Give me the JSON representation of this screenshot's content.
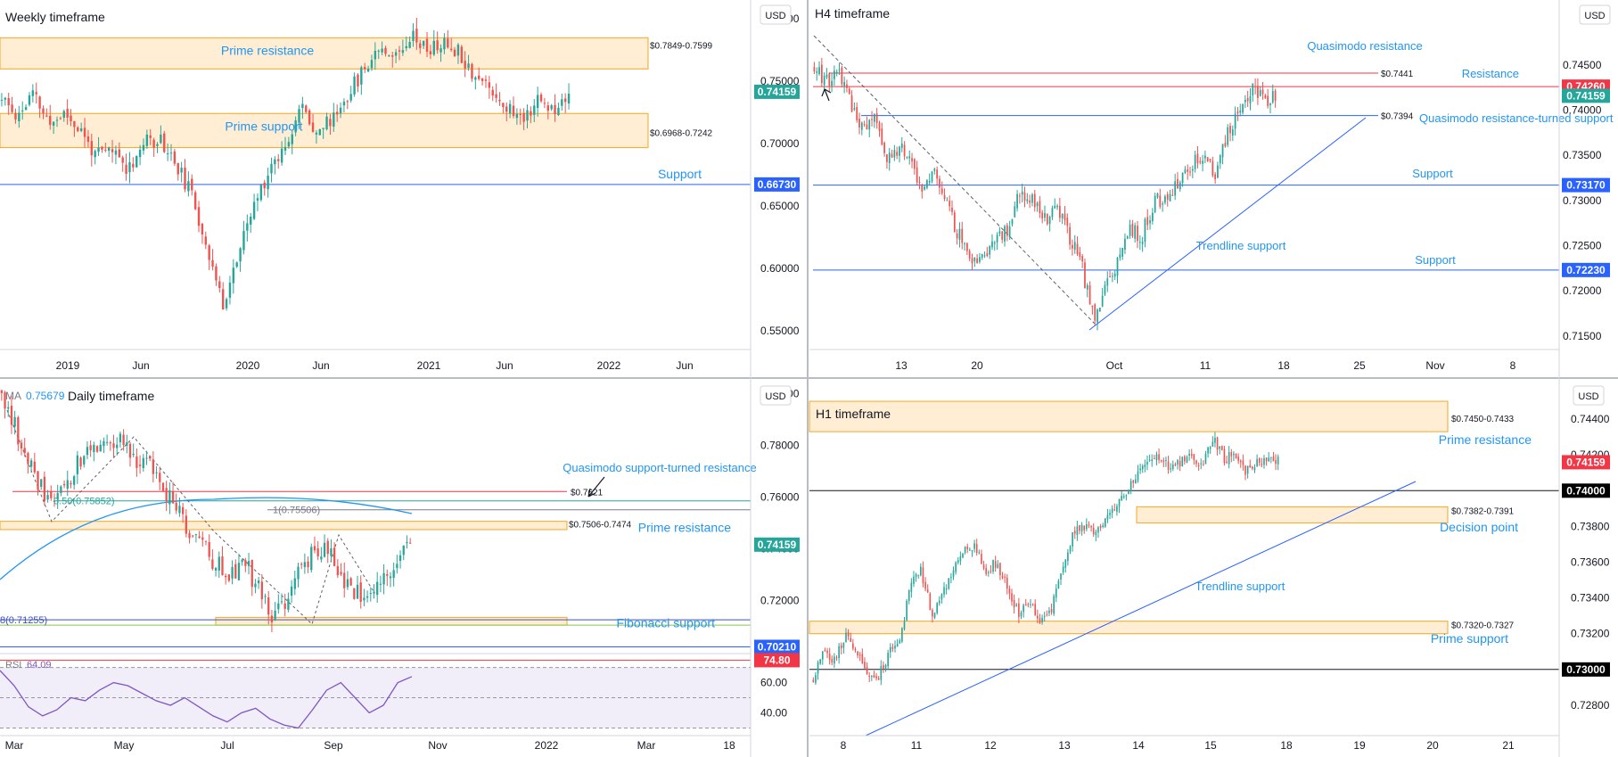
{
  "chart_data": [
    {
      "type": "candlestick",
      "title": "Weekly timeframe",
      "currency": "USD",
      "x_tick_labels": [
        "2019",
        "Jun",
        "2020",
        "Jun",
        "2021",
        "Jun",
        "2022",
        "Jun"
      ],
      "y_tick_labels": [
        "0.80000",
        "0.75000",
        "0.70000",
        "0.65000",
        "0.60000",
        "0.55000"
      ],
      "ylim": [
        0.535,
        0.808
      ],
      "price_badges": [
        {
          "value": 0.74159,
          "label": "0.74159",
          "color": "#26a69a"
        },
        {
          "value": 0.6673,
          "label": "0.66730",
          "color": "#2962ff"
        }
      ],
      "zones": [
        {
          "label": "Prime resistance",
          "range_label": "$0.7849-0.7599",
          "high": 0.7849,
          "low": 0.7599
        },
        {
          "label": "Prime support",
          "range_label": "$0.6968-0.7242",
          "high": 0.7242,
          "low": 0.6968
        }
      ],
      "lines": [
        {
          "label": "Support",
          "value": 0.6673,
          "color": "#2962ff"
        }
      ],
      "price_path": [
        0.735,
        0.722,
        0.74,
        0.715,
        0.725,
        0.71,
        0.69,
        0.695,
        0.68,
        0.7,
        0.705,
        0.685,
        0.66,
        0.62,
        0.57,
        0.61,
        0.65,
        0.68,
        0.7,
        0.73,
        0.71,
        0.72,
        0.74,
        0.76,
        0.78,
        0.77,
        0.79,
        0.775,
        0.78,
        0.775,
        0.755,
        0.745,
        0.73,
        0.72,
        0.735,
        0.728,
        0.742
      ]
    },
    {
      "type": "candlestick",
      "title": "H4 timeframe",
      "currency": "USD",
      "x_tick_labels": [
        "13",
        "20",
        "Oct",
        "11",
        "18",
        "25",
        "Nov",
        "8"
      ],
      "y_tick_labels": [
        "0.74500",
        "0.74000",
        "0.73500",
        "0.73000",
        "0.72500",
        "0.72000",
        "0.71500"
      ],
      "ylim": [
        0.7135,
        0.7512
      ],
      "price_badges": [
        {
          "value": 0.7426,
          "label": "0.74260",
          "color": "#f23645"
        },
        {
          "value": 0.74159,
          "label": "0.74159",
          "color": "#26a69a"
        },
        {
          "value": 0.7317,
          "label": "0.73170",
          "color": "#2962ff"
        },
        {
          "value": 0.7223,
          "label": "0.72230",
          "color": "#2962ff"
        }
      ],
      "lines": [
        {
          "label": "Resistance",
          "value": 0.7426,
          "color": "#f23645"
        },
        {
          "label": "Quasimodo resistance",
          "value": 0.7441,
          "value_label": "$0.7441",
          "color": "#f23645"
        },
        {
          "label": "Quasimodo resistance-turned support",
          "value": 0.7394,
          "value_label": "$0.7394",
          "color": "#2962ff"
        },
        {
          "label": "Support",
          "value": 0.7317,
          "color": "#2962ff"
        },
        {
          "label": "Support",
          "value": 0.7223,
          "color": "#2962ff"
        }
      ],
      "annotations": [
        "Trendline support"
      ],
      "price_path": [
        0.745,
        0.743,
        0.744,
        0.741,
        0.738,
        0.739,
        0.735,
        0.736,
        0.734,
        0.731,
        0.733,
        0.729,
        0.726,
        0.723,
        0.724,
        0.726,
        0.727,
        0.731,
        0.73,
        0.728,
        0.729,
        0.726,
        0.723,
        0.717,
        0.72,
        0.723,
        0.727,
        0.726,
        0.73,
        0.73,
        0.732,
        0.734,
        0.735,
        0.733,
        0.737,
        0.74,
        0.7425,
        0.741,
        0.7416
      ]
    },
    {
      "type": "candlestick",
      "title": "Daily timeframe",
      "currency": "USD",
      "indicator": {
        "name": "MA",
        "value": "0.75679"
      },
      "x_tick_labels": [
        "Mar",
        "May",
        "Jul",
        "Sep",
        "Nov",
        "2022",
        "Mar",
        "18"
      ],
      "y_tick_labels": [
        "0.80000",
        "0.78000",
        "0.76000",
        "0.74000",
        "0.72000"
      ],
      "ylim": [
        0.6995,
        0.8025
      ],
      "price_badges": [
        {
          "value": 0.74159,
          "label": "0.74159",
          "color": "#26a69a"
        },
        {
          "value": 0.7021,
          "label": "0.70210",
          "color": "#2962ff"
        }
      ],
      "zones": [
        {
          "label": "Prime resistance",
          "range_label": "$0.7506-0.7474",
          "high": 0.7506,
          "low": 0.7474
        },
        {
          "label": "Fibonacci support",
          "high": 0.7135,
          "low": 0.7105
        }
      ],
      "lines": [
        {
          "label": "Quasimodo support-turned resistance",
          "value": 0.7621,
          "value_label": "$0.7621",
          "color": "#f23645"
        }
      ],
      "fib_labels": [
        "0.50(0.75852)",
        "1(0.75506)",
        "8(0.71255)"
      ],
      "price_path": [
        0.8,
        0.785,
        0.77,
        0.758,
        0.765,
        0.772,
        0.78,
        0.785,
        0.78,
        0.775,
        0.77,
        0.76,
        0.75,
        0.745,
        0.735,
        0.73,
        0.735,
        0.725,
        0.713,
        0.72,
        0.735,
        0.74,
        0.735,
        0.725,
        0.72,
        0.727,
        0.735,
        0.742
      ],
      "rsi": {
        "label": "RSI",
        "value": "64.09",
        "badge": "74.80",
        "y_tick_labels": [
          "60.00",
          "40.00"
        ],
        "ylim": [
          25,
          78
        ],
        "guide_levels": [
          70,
          50,
          30
        ],
        "values": [
          68,
          58,
          44,
          38,
          42,
          50,
          48,
          55,
          60,
          58,
          53,
          48,
          45,
          50,
          44,
          38,
          34,
          40,
          43,
          36,
          32,
          30,
          42,
          55,
          60,
          50,
          40,
          45,
          60,
          64
        ]
      }
    },
    {
      "type": "candlestick",
      "title": "H1 timeframe",
      "currency": "USD",
      "x_tick_labels": [
        "8",
        "11",
        "12",
        "13",
        "14",
        "15",
        "18",
        "19",
        "20",
        "21"
      ],
      "y_tick_labels": [
        "0.74400",
        "0.74200",
        "0.73800",
        "0.73600",
        "0.73400",
        "0.73200",
        "0.72800"
      ],
      "ylim": [
        0.7263,
        0.7458
      ],
      "price_badges": [
        {
          "value": 0.74159,
          "label": "0.74159",
          "color": "#f23645"
        },
        {
          "value": 0.74,
          "label": "0.74000",
          "color": "#000000"
        },
        {
          "value": 0.73,
          "label": "0.73000",
          "color": "#000000"
        }
      ],
      "zones": [
        {
          "label": "Prime resistance",
          "range_label": "$0.7450-0.7433",
          "high": 0.745,
          "low": 0.7433
        },
        {
          "label": "Decision point",
          "range_label": "$0.7382-0.7391",
          "high": 0.7391,
          "low": 0.7382
        },
        {
          "label": "Prime support",
          "range_label": "$0.7320-0.7327",
          "high": 0.7327,
          "low": 0.732
        }
      ],
      "lines": [
        {
          "value": 0.74,
          "color": "#000000"
        },
        {
          "value": 0.73,
          "color": "#000000"
        }
      ],
      "annotations": [
        "Trendline support"
      ],
      "price_path": [
        0.7295,
        0.731,
        0.7305,
        0.732,
        0.7312,
        0.7298,
        0.7295,
        0.731,
        0.7315,
        0.7348,
        0.7355,
        0.733,
        0.7345,
        0.7355,
        0.737,
        0.7368,
        0.7355,
        0.736,
        0.7345,
        0.7332,
        0.7338,
        0.7328,
        0.7333,
        0.7355,
        0.7375,
        0.738,
        0.7378,
        0.7385,
        0.739,
        0.74,
        0.741,
        0.742,
        0.7418,
        0.7413,
        0.7416,
        0.742,
        0.7415,
        0.743,
        0.7418,
        0.742,
        0.741,
        0.7415,
        0.7417,
        0.7416
      ]
    }
  ]
}
